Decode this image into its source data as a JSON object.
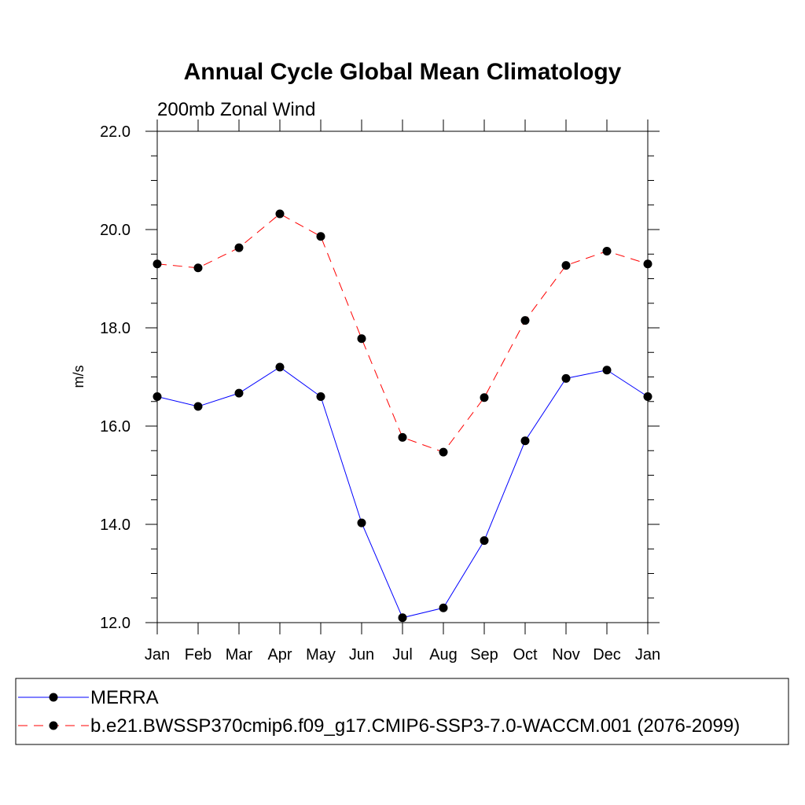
{
  "chart_data": {
    "type": "line",
    "title": "Annual Cycle Global Mean Climatology",
    "subtitle": "200mb Zonal Wind",
    "xlabel": "",
    "ylabel": "m/s",
    "categories": [
      "Jan",
      "Feb",
      "Mar",
      "Apr",
      "May",
      "Jun",
      "Jul",
      "Aug",
      "Sep",
      "Oct",
      "Nov",
      "Dec",
      "Jan"
    ],
    "ylim": [
      12.0,
      22.0
    ],
    "yticks": [
      "12.0",
      "14.0",
      "16.0",
      "18.0",
      "20.0",
      "22.0"
    ],
    "grid": false,
    "legend_position": "bottom",
    "series": [
      {
        "name": "MERRA",
        "color": "#0000ff",
        "style": "solid",
        "values": [
          16.6,
          16.4,
          16.67,
          17.2,
          16.6,
          14.03,
          12.1,
          12.3,
          13.67,
          15.7,
          16.97,
          17.14,
          16.6
        ]
      },
      {
        "name": "b.e21.BWSSP370cmip6.f09_g17.CMIP6-SSP3-7.0-WACCM.001 (2076-2099)",
        "color": "#ff0000",
        "style": "dashed",
        "values": [
          19.3,
          19.22,
          19.63,
          20.32,
          19.86,
          17.78,
          15.77,
          15.47,
          16.58,
          18.15,
          19.27,
          19.56,
          19.3
        ]
      }
    ]
  }
}
